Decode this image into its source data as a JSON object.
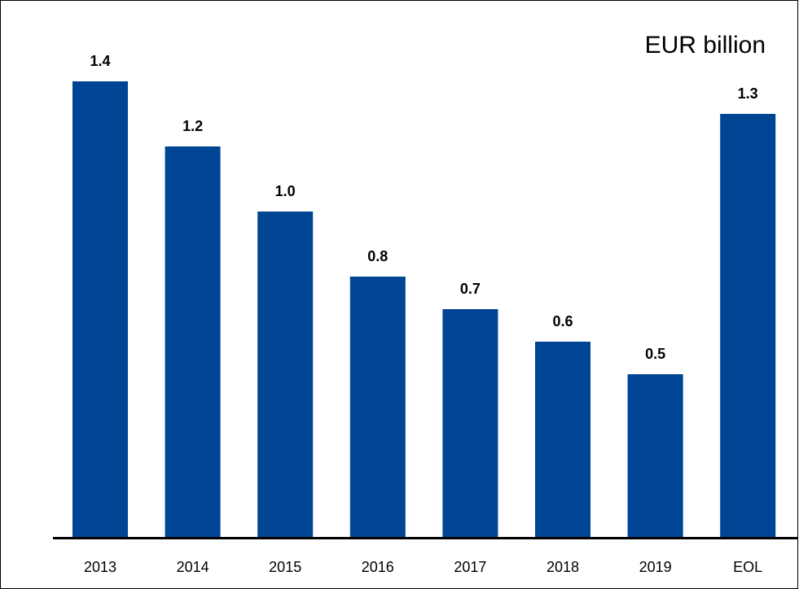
{
  "chart_data": {
    "type": "bar",
    "title": "EUR billion",
    "categories": [
      "2013",
      "2014",
      "2015",
      "2016",
      "2017",
      "2018",
      "2019",
      "EOL"
    ],
    "values": [
      1.4,
      1.2,
      1.0,
      0.8,
      0.7,
      0.6,
      0.5,
      1.3
    ],
    "value_labels": [
      "1.4",
      "1.2",
      "1.0",
      "0.8",
      "0.7",
      "0.6",
      "0.5",
      "1.3"
    ],
    "color": "#004494"
  }
}
